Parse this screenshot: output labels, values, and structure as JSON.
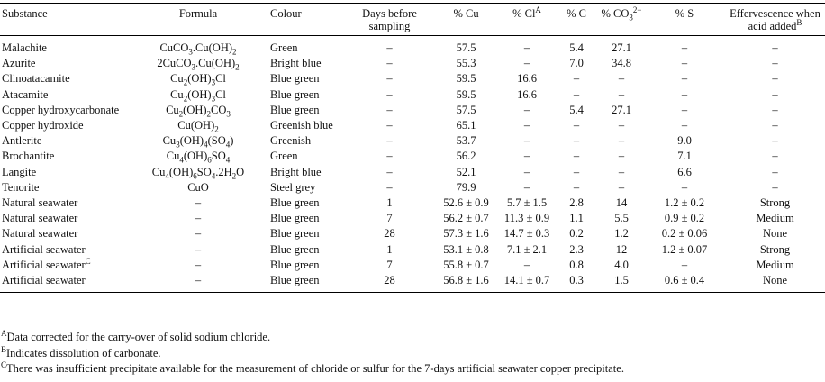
{
  "table": {
    "header": [
      {
        "text": "Substance"
      },
      {
        "text": "Formula"
      },
      {
        "text": "Colour"
      },
      {
        "text": "Days before sampling"
      },
      {
        "text": "% Cu"
      },
      {
        "text": "% Cl",
        "sup": "A"
      },
      {
        "text": "% C"
      },
      {
        "text": "% CO",
        "sub": "3",
        "sup": "2−"
      },
      {
        "text": "% S"
      },
      {
        "text": "Effervescence when acid added",
        "sup": "B"
      }
    ],
    "rows": [
      [
        {
          "text": "Malachite"
        },
        {
          "text": "CuCO3.Cu(OH)2"
        },
        {
          "text": "Green"
        },
        {
          "text": "–"
        },
        {
          "text": "57.5"
        },
        {
          "text": "–"
        },
        {
          "text": "5.4"
        },
        {
          "text": "27.1"
        },
        {
          "text": "–"
        },
        {
          "text": "–"
        }
      ],
      [
        {
          "text": "Azurite"
        },
        {
          "text": "2CuCO3.Cu(OH)2"
        },
        {
          "text": "Bright blue"
        },
        {
          "text": "–"
        },
        {
          "text": "55.3"
        },
        {
          "text": "–"
        },
        {
          "text": "7.0"
        },
        {
          "text": "34.8"
        },
        {
          "text": "–"
        },
        {
          "text": "–"
        }
      ],
      [
        {
          "text": "Clinoatacamite"
        },
        {
          "text": "Cu2(OH)3Cl"
        },
        {
          "text": "Blue green"
        },
        {
          "text": "–"
        },
        {
          "text": "59.5"
        },
        {
          "text": "16.6"
        },
        {
          "text": "–"
        },
        {
          "text": "–"
        },
        {
          "text": "–"
        },
        {
          "text": "–"
        }
      ],
      [
        {
          "text": "Atacamite"
        },
        {
          "text": "Cu2(OH)3Cl"
        },
        {
          "text": "Blue green"
        },
        {
          "text": "–"
        },
        {
          "text": "59.5"
        },
        {
          "text": "16.6"
        },
        {
          "text": "–"
        },
        {
          "text": "–"
        },
        {
          "text": "–"
        },
        {
          "text": "–"
        }
      ],
      [
        {
          "text": "Copper hydroxycarbonate"
        },
        {
          "text": "Cu2(OH)2CO3"
        },
        {
          "text": "Blue green"
        },
        {
          "text": "–"
        },
        {
          "text": "57.5"
        },
        {
          "text": "–"
        },
        {
          "text": "5.4"
        },
        {
          "text": "27.1"
        },
        {
          "text": "–"
        },
        {
          "text": "–"
        }
      ],
      [
        {
          "text": "Copper hydroxide"
        },
        {
          "text": "Cu(OH)2"
        },
        {
          "text": "Greenish blue"
        },
        {
          "text": "–"
        },
        {
          "text": "65.1"
        },
        {
          "text": "–"
        },
        {
          "text": "–"
        },
        {
          "text": "–"
        },
        {
          "text": "–"
        },
        {
          "text": "–"
        }
      ],
      [
        {
          "text": "Antlerite"
        },
        {
          "text": "Cu3(OH)4(SO4)"
        },
        {
          "text": "Greenish"
        },
        {
          "text": "–"
        },
        {
          "text": "53.7"
        },
        {
          "text": "–"
        },
        {
          "text": "–"
        },
        {
          "text": "–"
        },
        {
          "text": "9.0"
        },
        {
          "text": "–"
        }
      ],
      [
        {
          "text": "Brochantite"
        },
        {
          "text": "Cu4(OH)6SO4"
        },
        {
          "text": "Green"
        },
        {
          "text": "–"
        },
        {
          "text": "56.2"
        },
        {
          "text": "–"
        },
        {
          "text": "–"
        },
        {
          "text": "–"
        },
        {
          "text": "7.1"
        },
        {
          "text": "–"
        }
      ],
      [
        {
          "text": "Langite"
        },
        {
          "text": "Cu4(OH)6SO4.2H2O"
        },
        {
          "text": "Bright blue"
        },
        {
          "text": "–"
        },
        {
          "text": "52.1"
        },
        {
          "text": "–"
        },
        {
          "text": "–"
        },
        {
          "text": "–"
        },
        {
          "text": "6.6"
        },
        {
          "text": "–"
        }
      ],
      [
        {
          "text": "Tenorite"
        },
        {
          "text": "CuO"
        },
        {
          "text": "Steel grey"
        },
        {
          "text": "–"
        },
        {
          "text": "79.9"
        },
        {
          "text": "–"
        },
        {
          "text": "–"
        },
        {
          "text": "–"
        },
        {
          "text": "–"
        },
        {
          "text": "–"
        }
      ],
      [
        {
          "text": "Natural seawater"
        },
        {
          "text": "–"
        },
        {
          "text": "Blue green"
        },
        {
          "text": "1"
        },
        {
          "text": "52.6 ± 0.9"
        },
        {
          "text": "5.7 ± 1.5"
        },
        {
          "text": "2.8"
        },
        {
          "text": "14"
        },
        {
          "text": "1.2 ± 0.2"
        },
        {
          "text": "Strong"
        }
      ],
      [
        {
          "text": "Natural seawater"
        },
        {
          "text": "–"
        },
        {
          "text": "Blue green"
        },
        {
          "text": "7"
        },
        {
          "text": "56.2 ± 0.7"
        },
        {
          "text": "11.3 ± 0.9"
        },
        {
          "text": "1.1"
        },
        {
          "text": "5.5"
        },
        {
          "text": "0.9 ± 0.2"
        },
        {
          "text": "Medium"
        }
      ],
      [
        {
          "text": "Natural seawater"
        },
        {
          "text": "–"
        },
        {
          "text": "Blue green"
        },
        {
          "text": "28"
        },
        {
          "text": "57.3 ± 1.6"
        },
        {
          "text": "14.7 ± 0.3"
        },
        {
          "text": "0.2"
        },
        {
          "text": "1.2"
        },
        {
          "text": "0.2 ± 0.06"
        },
        {
          "text": "None"
        }
      ],
      [
        {
          "text": "Artificial seawater"
        },
        {
          "text": "–"
        },
        {
          "text": "Blue green"
        },
        {
          "text": "1"
        },
        {
          "text": "53.1 ± 0.8"
        },
        {
          "text": "7.1 ± 2.1"
        },
        {
          "text": "2.3"
        },
        {
          "text": "12"
        },
        {
          "text": "1.2 ± 0.07"
        },
        {
          "text": "Strong"
        }
      ],
      [
        {
          "text": "Artificial seawater",
          "sup": "C"
        },
        {
          "text": "–"
        },
        {
          "text": "Blue green"
        },
        {
          "text": "7"
        },
        {
          "text": "55.8 ± 0.7"
        },
        {
          "text": "–"
        },
        {
          "text": "0.8"
        },
        {
          "text": "4.0"
        },
        {
          "text": "–"
        },
        {
          "text": "Medium"
        }
      ],
      [
        {
          "text": "Artificial seawater"
        },
        {
          "text": "–"
        },
        {
          "text": "Blue green"
        },
        {
          "text": "28"
        },
        {
          "text": "56.8 ± 1.6"
        },
        {
          "text": "14.1 ± 0.7"
        },
        {
          "text": "0.3"
        },
        {
          "text": "1.5"
        },
        {
          "text": "0.6 ± 0.4"
        },
        {
          "text": "None"
        }
      ]
    ]
  },
  "footnotes": [
    {
      "mark": "A",
      "text": "Data corrected for the carry-over of solid sodium chloride."
    },
    {
      "mark": "B",
      "text": "Indicates dissolution of carbonate."
    },
    {
      "mark": "C",
      "text": "There was insufficient precipitate available for the measurement of chloride or sulfur for the 7-days artificial seawater copper precipitate."
    }
  ]
}
